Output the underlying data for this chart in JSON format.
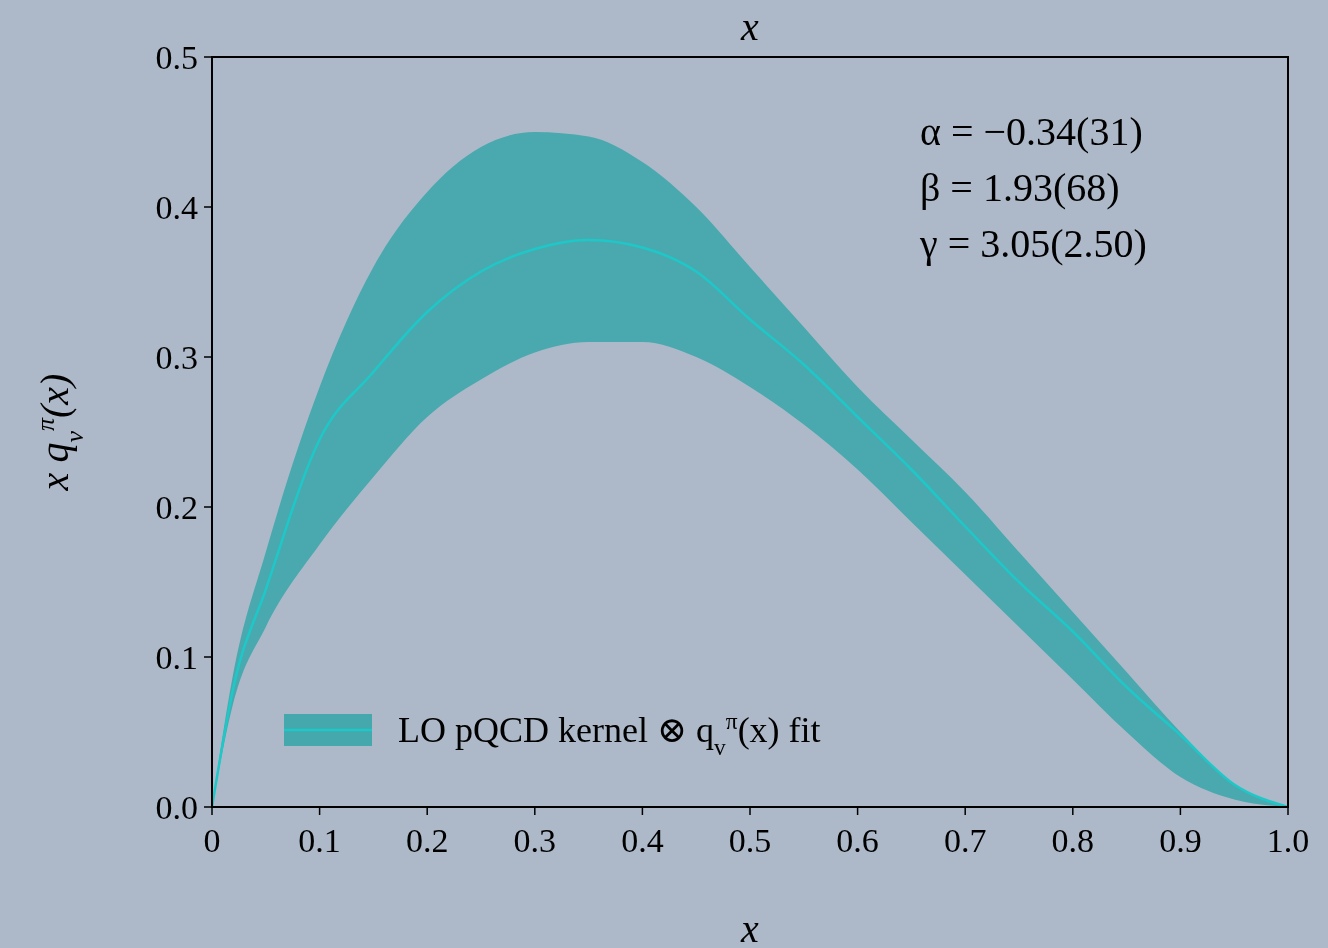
{
  "chart_data": {
    "type": "line",
    "title": "x",
    "xlabel": "x",
    "ylabel": "x q$_{v}$$^{π}$(x)",
    "x": [
      0,
      0.02,
      0.05,
      0.1,
      0.15,
      0.2,
      0.25,
      0.3,
      0.35,
      0.4,
      0.45,
      0.5,
      0.55,
      0.6,
      0.65,
      0.7,
      0.75,
      0.8,
      0.85,
      0.9,
      0.95,
      1.0
    ],
    "series": [
      {
        "name": "LO pQCD kernel ⊗ q$_{v}$$^{π}$(x) fit",
        "color": "#1ec8c8",
        "values": [
          0,
          0.08,
          0.145,
          0.245,
          0.29,
          0.33,
          0.357,
          0.372,
          0.378,
          0.373,
          0.357,
          0.325,
          0.295,
          0.26,
          0.225,
          0.187,
          0.15,
          0.117,
          0.08,
          0.048,
          0.015,
          0
        ],
        "lower": [
          0,
          0.07,
          0.12,
          0.175,
          0.22,
          0.26,
          0.285,
          0.303,
          0.31,
          0.31,
          0.3,
          0.28,
          0.255,
          0.225,
          0.19,
          0.155,
          0.12,
          0.085,
          0.05,
          0.02,
          0.005,
          0
        ],
        "upper": [
          0,
          0.09,
          0.17,
          0.28,
          0.36,
          0.41,
          0.44,
          0.45,
          0.447,
          0.43,
          0.4,
          0.36,
          0.32,
          0.28,
          0.245,
          0.21,
          0.17,
          0.13,
          0.09,
          0.05,
          0.015,
          0
        ]
      }
    ],
    "xlim": [
      0,
      1
    ],
    "xticks": [
      0,
      0.1,
      0.2,
      0.3,
      0.4,
      0.5,
      0.6,
      0.7,
      0.8,
      0.9,
      {
        "value": 1,
        "label": "1.0"
      }
    ],
    "ylim": [
      0,
      0.5
    ],
    "yticks": [
      {
        "value": 0,
        "label": "0.0"
      },
      0.1,
      0.2,
      0.3,
      0.4,
      0.5
    ],
    "annotations": [
      "α = −0.34(31)",
      "β = 1.93(68)",
      "γ = 3.05(2.50)"
    ],
    "legend": "bottom left",
    "grid": false
  }
}
